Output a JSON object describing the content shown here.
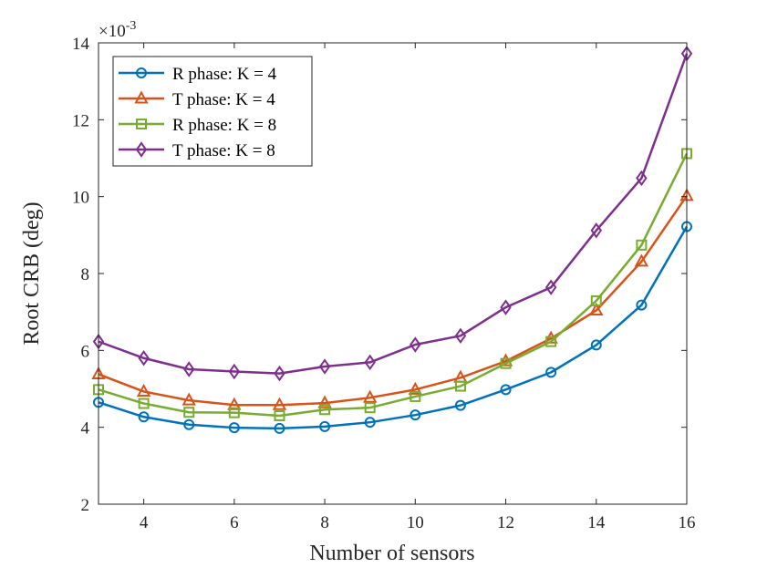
{
  "chart_data": {
    "type": "line",
    "title": "",
    "xlabel": "Number of sensors",
    "ylabel": "Root CRB (deg)",
    "y_exponent_label": {
      "base": "×10",
      "power": "-3"
    },
    "xlim": [
      3,
      16
    ],
    "ylim": [
      2,
      14
    ],
    "xticks": [
      4,
      6,
      8,
      10,
      12,
      14,
      16
    ],
    "xtick_labels": [
      "4",
      "6",
      "8",
      "10",
      "12",
      "14",
      "16"
    ],
    "yticks": [
      2,
      4,
      6,
      8,
      10,
      12,
      14
    ],
    "ytick_labels": [
      "2",
      "4",
      "6",
      "8",
      "10",
      "12",
      "14"
    ],
    "grid": false,
    "legend_position": "top-left",
    "x": [
      3,
      4,
      5,
      6,
      7,
      8,
      9,
      10,
      11,
      12,
      13,
      14,
      15,
      16
    ],
    "series": [
      {
        "name": "R phase: K = 4",
        "color": "#0072BD",
        "marker": "circle",
        "values": [
          4.65,
          4.27,
          4.07,
          3.99,
          3.97,
          4.02,
          4.13,
          4.32,
          4.57,
          4.98,
          5.43,
          6.14,
          7.18,
          9.22
        ]
      },
      {
        "name": "T phase: K = 4",
        "color": "#D95319",
        "marker": "triangle",
        "values": [
          5.38,
          4.93,
          4.7,
          4.58,
          4.58,
          4.63,
          4.77,
          4.98,
          5.29,
          5.72,
          6.31,
          7.04,
          8.31,
          10.02
        ]
      },
      {
        "name": "R phase: K = 8",
        "color": "#77AC30",
        "marker": "square",
        "values": [
          4.98,
          4.62,
          4.39,
          4.38,
          4.3,
          4.46,
          4.51,
          4.8,
          5.07,
          5.66,
          6.23,
          7.29,
          8.74,
          11.12
        ]
      },
      {
        "name": "T phase: K = 8",
        "color": "#7E2F8E",
        "marker": "diamond",
        "values": [
          6.23,
          5.8,
          5.51,
          5.45,
          5.4,
          5.58,
          5.69,
          6.15,
          6.38,
          7.12,
          7.64,
          9.12,
          10.48,
          13.72
        ]
      }
    ]
  }
}
